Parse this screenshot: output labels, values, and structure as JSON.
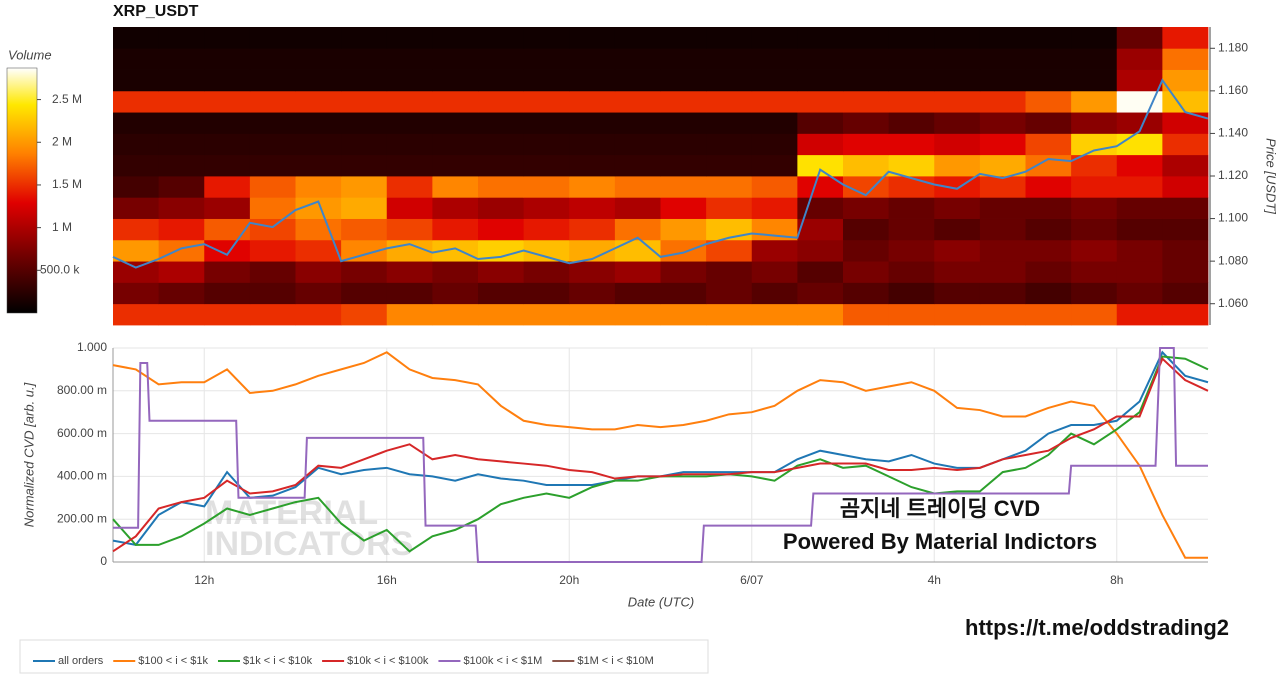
{
  "chart_data": [
    {
      "type": "heatmap",
      "title": "XRP_USDT",
      "x": [
        10.5,
        11.5,
        12.5,
        13.5,
        14.5,
        15.5,
        16.5,
        17.5,
        18.5,
        19.5,
        20.5,
        21.5,
        22.5,
        23.5,
        24.5,
        25.5,
        26.5,
        27.5,
        28.5,
        29.5,
        30.5,
        31.5,
        32.5,
        33.5
      ],
      "ybins": [
        1.05,
        1.06,
        1.07,
        1.08,
        1.09,
        1.1,
        1.11,
        1.12,
        1.13,
        1.14,
        1.15,
        1.16,
        1.17,
        1.18,
        1.19
      ],
      "z": [
        [
          1500000,
          1500000,
          1500000,
          1500000,
          1500000,
          1600000,
          1900000,
          1900000,
          1900000,
          1900000,
          1900000,
          1900000,
          1900000,
          1900000,
          1900000,
          1900000,
          1700000,
          1700000,
          1700000,
          1700000,
          1700000,
          1700000,
          1400000,
          1400000
        ],
        [
          700000,
          600000,
          500000,
          500000,
          600000,
          500000,
          500000,
          600000,
          500000,
          500000,
          600000,
          500000,
          500000,
          600000,
          500000,
          600000,
          500000,
          400000,
          500000,
          500000,
          400000,
          500000,
          600000,
          500000
        ],
        [
          900000,
          1000000,
          700000,
          600000,
          800000,
          700000,
          800000,
          700000,
          800000,
          700000,
          800000,
          900000,
          700000,
          600000,
          700000,
          500000,
          700000,
          600000,
          700000,
          700000,
          600000,
          700000,
          700000,
          600000
        ],
        [
          2000000,
          1800000,
          1300000,
          1400000,
          1500000,
          1900000,
          2100000,
          2200000,
          2300000,
          2200000,
          2100000,
          2200000,
          1800000,
          1600000,
          900000,
          800000,
          600000,
          700000,
          800000,
          700000,
          700000,
          800000,
          700000,
          600000
        ],
        [
          1500000,
          1400000,
          1700000,
          1600000,
          1800000,
          1700000,
          1600000,
          1400000,
          1300000,
          1400000,
          1500000,
          1800000,
          2000000,
          2200000,
          1900000,
          900000,
          500000,
          600000,
          500000,
          600000,
          500000,
          600000,
          500000,
          500000
        ],
        [
          700000,
          800000,
          900000,
          1800000,
          2000000,
          2100000,
          1200000,
          1000000,
          900000,
          1000000,
          1100000,
          1000000,
          1300000,
          1500000,
          1400000,
          600000,
          700000,
          600000,
          700000,
          600000,
          600000,
          700000,
          600000,
          600000
        ],
        [
          400000,
          500000,
          1400000,
          1700000,
          1900000,
          2000000,
          1500000,
          1900000,
          1800000,
          1800000,
          1900000,
          1800000,
          1800000,
          1800000,
          1700000,
          1300000,
          1600000,
          1500000,
          1400000,
          1500000,
          1300000,
          1400000,
          1400000,
          1200000
        ],
        [
          300000,
          300000,
          300000,
          300000,
          300000,
          300000,
          300000,
          300000,
          300000,
          300000,
          300000,
          300000,
          300000,
          300000,
          300000,
          2400000,
          2200000,
          2300000,
          2000000,
          2100000,
          1800000,
          1500000,
          1300000,
          1000000
        ],
        [
          250000,
          250000,
          250000,
          250000,
          250000,
          250000,
          250000,
          250000,
          250000,
          250000,
          250000,
          250000,
          250000,
          250000,
          250000,
          1200000,
          1300000,
          1300000,
          1200000,
          1300000,
          1600000,
          2300000,
          2400000,
          1500000
        ],
        [
          200000,
          200000,
          200000,
          200000,
          200000,
          200000,
          200000,
          200000,
          200000,
          200000,
          200000,
          200000,
          200000,
          200000,
          200000,
          500000,
          600000,
          500000,
          600000,
          700000,
          600000,
          800000,
          900000,
          1200000
        ],
        [
          1500000,
          1500000,
          1500000,
          1500000,
          1500000,
          1500000,
          1500000,
          1500000,
          1500000,
          1500000,
          1500000,
          1500000,
          1500000,
          1500000,
          1500000,
          1500000,
          1500000,
          1500000,
          1500000,
          1500000,
          1700000,
          2000000,
          2850000,
          2200000
        ],
        [
          150000,
          150000,
          150000,
          150000,
          150000,
          150000,
          150000,
          150000,
          150000,
          150000,
          150000,
          150000,
          150000,
          150000,
          150000,
          150000,
          150000,
          150000,
          150000,
          150000,
          150000,
          150000,
          1000000,
          2000000
        ],
        [
          150000,
          150000,
          150000,
          150000,
          150000,
          150000,
          150000,
          150000,
          150000,
          150000,
          150000,
          150000,
          150000,
          150000,
          150000,
          150000,
          150000,
          150000,
          150000,
          150000,
          150000,
          150000,
          900000,
          1800000
        ],
        [
          100000,
          100000,
          100000,
          100000,
          100000,
          100000,
          100000,
          100000,
          100000,
          100000,
          100000,
          100000,
          100000,
          100000,
          100000,
          100000,
          100000,
          100000,
          100000,
          100000,
          100000,
          100000,
          600000,
          1400000
        ]
      ],
      "colorbar_title": "Volume",
      "zlim": [
        0,
        2870000
      ],
      "zticks": [
        {
          "value": 500000,
          "label": "500.0 k"
        },
        {
          "value": 1000000,
          "label": "1 M"
        },
        {
          "value": 1500000,
          "label": "1.5 M"
        },
        {
          "value": 2000000,
          "label": "2 M"
        },
        {
          "value": 2500000,
          "label": "2.5 M"
        }
      ],
      "colorscale": [
        [
          0,
          "#000000"
        ],
        [
          0.25,
          "#7a0000"
        ],
        [
          0.45,
          "#e00000"
        ],
        [
          0.65,
          "#ff8000"
        ],
        [
          0.85,
          "#ffe800"
        ],
        [
          1,
          "#ffffff"
        ]
      ],
      "xlim": [
        10,
        34
      ],
      "ylim": [
        1.05,
        1.19
      ],
      "yticks": [
        {
          "value": 1.06,
          "label": "1.060"
        },
        {
          "value": 1.08,
          "label": "1.080"
        },
        {
          "value": 1.1,
          "label": "1.100"
        },
        {
          "value": 1.12,
          "label": "1.120"
        },
        {
          "value": 1.14,
          "label": "1.140"
        },
        {
          "value": 1.16,
          "label": "1.160"
        },
        {
          "value": 1.18,
          "label": "1.180"
        }
      ],
      "ylabel": "Price [USDT]",
      "price": {
        "color": "#3f85c8",
        "x": [
          10,
          10.5,
          11,
          11.5,
          12,
          12.5,
          13,
          13.5,
          14,
          14.5,
          15,
          15.5,
          16,
          16.5,
          17,
          17.5,
          18,
          18.5,
          19,
          19.5,
          20,
          20.5,
          21,
          21.5,
          22,
          22.5,
          23,
          23.5,
          24,
          24.5,
          25,
          25.5,
          26,
          26.5,
          27,
          27.5,
          28,
          28.5,
          29,
          29.5,
          30,
          30.5,
          31,
          31.5,
          32,
          32.5,
          33,
          33.5,
          34
        ],
        "values": [
          1.082,
          1.077,
          1.081,
          1.086,
          1.088,
          1.083,
          1.098,
          1.096,
          1.104,
          1.108,
          1.08,
          1.083,
          1.086,
          1.088,
          1.084,
          1.086,
          1.081,
          1.082,
          1.085,
          1.082,
          1.079,
          1.081,
          1.086,
          1.091,
          1.082,
          1.084,
          1.088,
          1.091,
          1.093,
          1.092,
          1.091,
          1.123,
          1.116,
          1.111,
          1.122,
          1.119,
          1.116,
          1.114,
          1.121,
          1.119,
          1.122,
          1.128,
          1.127,
          1.132,
          1.134,
          1.141,
          1.165,
          1.15,
          1.147
        ]
      }
    },
    {
      "type": "line",
      "x": [
        10,
        10.5,
        11,
        11.5,
        12,
        12.5,
        13,
        13.5,
        14,
        14.5,
        15,
        15.5,
        16,
        16.5,
        17,
        17.5,
        18,
        18.5,
        19,
        19.5,
        20,
        20.5,
        21,
        21.5,
        22,
        22.5,
        23,
        23.5,
        24,
        24.5,
        25,
        25.5,
        26,
        26.5,
        27,
        27.5,
        28,
        28.5,
        29,
        29.5,
        30,
        30.5,
        31,
        31.5,
        32,
        32.5,
        33,
        33.5,
        34
      ],
      "series": [
        {
          "name": "all orders",
          "color": "#1f77b4",
          "values": [
            0.1,
            0.08,
            0.22,
            0.28,
            0.26,
            0.42,
            0.3,
            0.31,
            0.35,
            0.44,
            0.41,
            0.43,
            0.44,
            0.41,
            0.4,
            0.38,
            0.41,
            0.39,
            0.38,
            0.36,
            0.36,
            0.36,
            0.38,
            0.4,
            0.4,
            0.42,
            0.42,
            0.42,
            0.42,
            0.42,
            0.48,
            0.52,
            0.5,
            0.48,
            0.47,
            0.5,
            0.46,
            0.44,
            0.44,
            0.48,
            0.52,
            0.6,
            0.64,
            0.64,
            0.66,
            0.75,
            0.98,
            0.87,
            0.84
          ]
        },
        {
          "name": "$100 < i < $1k",
          "color": "#ff7f0e",
          "values": [
            0.92,
            0.9,
            0.83,
            0.84,
            0.84,
            0.9,
            0.79,
            0.8,
            0.83,
            0.87,
            0.9,
            0.93,
            0.98,
            0.9,
            0.86,
            0.85,
            0.83,
            0.73,
            0.66,
            0.64,
            0.63,
            0.62,
            0.62,
            0.64,
            0.63,
            0.64,
            0.66,
            0.69,
            0.7,
            0.73,
            0.8,
            0.85,
            0.84,
            0.8,
            0.82,
            0.84,
            0.8,
            0.72,
            0.71,
            0.68,
            0.68,
            0.72,
            0.75,
            0.73,
            0.6,
            0.45,
            0.22,
            0.02,
            0.02
          ]
        },
        {
          "name": "$1k < i < $10k",
          "color": "#2ca02c",
          "values": [
            0.2,
            0.08,
            0.08,
            0.12,
            0.18,
            0.25,
            0.22,
            0.25,
            0.28,
            0.3,
            0.18,
            0.1,
            0.15,
            0.05,
            0.12,
            0.15,
            0.2,
            0.27,
            0.3,
            0.32,
            0.3,
            0.35,
            0.38,
            0.38,
            0.4,
            0.4,
            0.4,
            0.41,
            0.4,
            0.38,
            0.45,
            0.48,
            0.44,
            0.45,
            0.4,
            0.35,
            0.32,
            0.33,
            0.33,
            0.42,
            0.44,
            0.5,
            0.6,
            0.55,
            0.62,
            0.7,
            0.96,
            0.95,
            0.9
          ]
        },
        {
          "name": "$10k < i < $100k",
          "color": "#d62728",
          "values": [
            0.05,
            0.12,
            0.25,
            0.28,
            0.3,
            0.38,
            0.32,
            0.33,
            0.36,
            0.45,
            0.44,
            0.48,
            0.52,
            0.55,
            0.48,
            0.5,
            0.48,
            0.47,
            0.46,
            0.45,
            0.43,
            0.42,
            0.39,
            0.4,
            0.4,
            0.41,
            0.41,
            0.41,
            0.42,
            0.42,
            0.44,
            0.46,
            0.46,
            0.46,
            0.43,
            0.43,
            0.44,
            0.43,
            0.44,
            0.48,
            0.5,
            0.52,
            0.58,
            0.62,
            0.68,
            0.68,
            0.95,
            0.85,
            0.8
          ]
        },
        {
          "name": "$100k < i < $1M",
          "color": "#9467bd",
          "x": [
            10,
            10.55,
            10.6,
            10.75,
            10.8,
            12.7,
            12.75,
            14.2,
            14.25,
            16.8,
            16.85,
            17.95,
            18,
            22.9,
            22.95,
            25.3,
            25.35,
            30.95,
            31,
            32.85,
            32.95,
            33.25,
            33.3,
            34
          ],
          "values": [
            0.16,
            0.16,
            0.93,
            0.93,
            0.66,
            0.66,
            0.3,
            0.3,
            0.58,
            0.58,
            0.17,
            0.17,
            0,
            0,
            0.17,
            0.17,
            0.32,
            0.32,
            0.45,
            0.45,
            1,
            1,
            0.45,
            0.45
          ]
        },
        {
          "name": "$1M < i < $10M",
          "color": "#8c564b",
          "values": [
            null,
            null,
            null,
            null,
            null,
            null,
            null,
            null,
            null,
            null,
            null,
            null,
            null,
            null,
            null,
            null,
            null,
            null,
            null,
            null,
            null,
            null,
            null,
            null,
            null,
            null,
            null,
            null,
            null,
            null,
            null,
            null,
            null,
            null,
            null,
            null,
            null,
            null,
            null,
            null,
            null,
            null,
            null,
            null,
            null,
            null,
            null,
            null,
            null
          ]
        }
      ],
      "xlim": [
        10,
        34
      ],
      "xticks": [
        {
          "value": 12,
          "label": "12h"
        },
        {
          "value": 16,
          "label": "16h"
        },
        {
          "value": 20,
          "label": "20h"
        },
        {
          "value": 24,
          "label": "6/07"
        },
        {
          "value": 28,
          "label": "4h"
        },
        {
          "value": 32,
          "label": "8h"
        }
      ],
      "ylim": [
        0,
        1
      ],
      "yticks": [
        0,
        {
          "value": 0.2,
          "label": "200.00 m"
        },
        {
          "value": 0.4,
          "label": "400.00 m"
        },
        {
          "value": 0.6,
          "label": "600.00 m"
        },
        {
          "value": 0.8,
          "label": "800.00 m"
        },
        {
          "value": 1,
          "label": "1.000"
        }
      ],
      "xlabel": "Date (UTC)",
      "ylabel": "Normalized CVD [arb. u.]",
      "grid": true,
      "legend": "bottom",
      "annotations": [
        "곰지네 트레이딩 CVD",
        "Powered By Material Indictors"
      ],
      "watermark": [
        "MATERIAL",
        "INDICATORS"
      ]
    }
  ],
  "footer": "https://t.me/oddstrading2"
}
